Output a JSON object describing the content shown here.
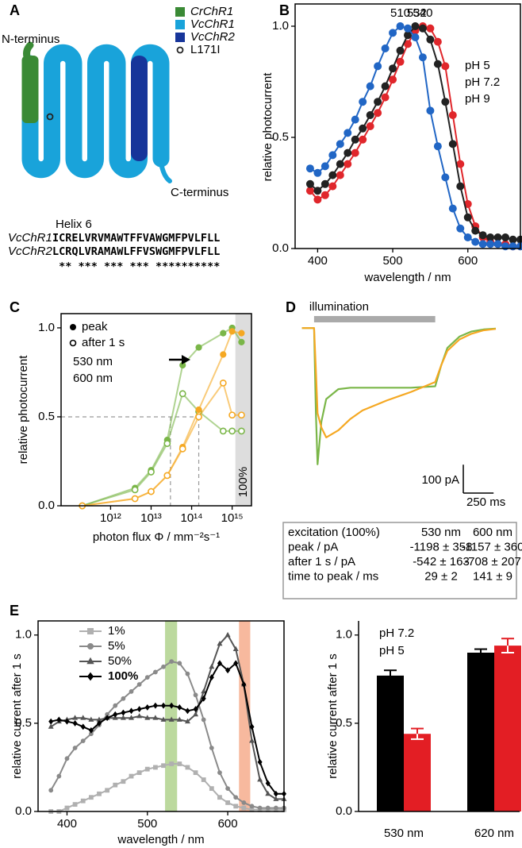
{
  "panel_labels": [
    "A",
    "B",
    "C",
    "D",
    "E"
  ],
  "diagram": {
    "legend": [
      {
        "label": "CrChR1",
        "color": "#3a8a35",
        "shape": "square"
      },
      {
        "label": "VcChR1",
        "color": "#19a3da",
        "shape": "square"
      },
      {
        "label": "VcChR2",
        "color": "#17359a",
        "shape": "square"
      },
      {
        "label": "L171I",
        "color": "#222222",
        "shape": "circle"
      }
    ],
    "n_terminus": "N-terminus",
    "c_terminus": "C-terminus",
    "helix_title": "Helix 6",
    "sequences": [
      {
        "name": "VcChR1",
        "sequence": "ICRELVRVMAWTFFVAWGMFPVLFLL",
        "color": "#19a3da"
      },
      {
        "name": "VcChR2",
        "sequence": "LCRQLVRAMAWLFFVSWGMFPVLFLL",
        "color": "#17359a"
      }
    ],
    "conservation": " ** *** *** *** **********"
  },
  "table": {
    "header": [
      "excitation (100%)",
      "530 nm",
      "600 nm"
    ],
    "rows": [
      [
        "peak / pA",
        "-1198 ± 358",
        "-1157 ± 360"
      ],
      [
        "after 1 s / pA",
        "-542 ± 163",
        "-708 ± 207"
      ],
      [
        "time to peak / ms",
        "29 ± 2",
        "141 ± 9"
      ]
    ],
    "column_colors": [
      "#000000",
      "#7ab648",
      "#f5a822"
    ]
  },
  "chart_data": [
    {
      "type": "line",
      "xlabel": "wavelength / nm",
      "ylabel": "relative photocurrent",
      "x": [
        390,
        400,
        410,
        420,
        430,
        440,
        450,
        460,
        470,
        480,
        490,
        500,
        510,
        520,
        530,
        540,
        550,
        560,
        570,
        580,
        590,
        600,
        610,
        620,
        630,
        640,
        650,
        660,
        670
      ],
      "series": [
        {
          "name": "pH 5",
          "color": "#e0262b",
          "marker": "circle",
          "values": [
            0.26,
            0.22,
            0.24,
            0.28,
            0.33,
            0.38,
            0.43,
            0.49,
            0.55,
            0.61,
            0.68,
            0.76,
            0.84,
            0.92,
            0.98,
            1.0,
            0.99,
            0.93,
            0.82,
            0.6,
            0.38,
            0.2,
            0.1,
            0.05,
            0.03,
            0.02,
            0.02,
            0.01,
            0.01
          ]
        },
        {
          "name": "pH 7.2",
          "color": "#222222",
          "marker": "circle",
          "values": [
            0.29,
            0.26,
            0.29,
            0.33,
            0.38,
            0.43,
            0.49,
            0.54,
            0.6,
            0.66,
            0.73,
            0.81,
            0.89,
            0.96,
            1.0,
            0.99,
            0.94,
            0.83,
            0.66,
            0.47,
            0.28,
            0.14,
            0.08,
            0.06,
            0.05,
            0.05,
            0.05,
            0.04,
            0.04
          ]
        },
        {
          "name": "pH 9",
          "color": "#2166c5",
          "marker": "circle",
          "values": [
            0.36,
            0.34,
            0.37,
            0.42,
            0.47,
            0.52,
            0.58,
            0.66,
            0.73,
            0.82,
            0.9,
            0.97,
            1.0,
            0.99,
            0.95,
            0.86,
            0.62,
            0.46,
            0.32,
            0.18,
            0.09,
            0.05,
            0.03,
            0.02,
            0.02,
            0.02,
            0.01,
            0.01,
            0.01
          ]
        }
      ],
      "peak_labels": [
        {
          "value": 510,
          "color": "#2166c5"
        },
        {
          "value": 532,
          "color": "#222222"
        },
        {
          "value": 540,
          "color": "#e0262b"
        }
      ],
      "legend": "top-right",
      "xlim": [
        370,
        670
      ],
      "xticks": [
        400,
        500,
        600
      ],
      "ylim": [
        0,
        1.1
      ],
      "yticks": [
        {
          "value": 0,
          "label": "0.0"
        },
        {
          "value": 0.5,
          "label": "0.5"
        },
        {
          "value": 1,
          "label": "1.0"
        }
      ]
    },
    {
      "type": "line",
      "xlabel": "photon flux Φ / mm⁻²s⁻¹",
      "ylabel": "relative photocurrent",
      "xscale": "log",
      "x": [
        200000000000.0,
        4000000000000.0,
        10000000000000.0,
        25000000000000.0,
        60000000000000.0,
        150000000000000.0,
        600000000000000.0,
        1000000000000000.0,
        1700000000000000.0
      ],
      "series": [
        {
          "color": "#7ab648",
          "marker": "filled",
          "values": [
            0,
            0.1,
            0.2,
            0.37,
            0.79,
            0.89,
            0.97,
            1.0,
            0.92
          ]
        },
        {
          "color": "#7ab648",
          "marker": "open",
          "values": [
            0,
            0.09,
            0.19,
            0.35,
            0.63,
            0.53,
            0.42,
            0.42,
            0.42
          ]
        },
        {
          "color": "#f5a822",
          "marker": "filled",
          "values": [
            0,
            0.04,
            0.08,
            0.17,
            0.33,
            0.54,
            0.85,
            0.98,
            0.97
          ]
        },
        {
          "color": "#f5a822",
          "marker": "open",
          "values": [
            0,
            0.04,
            0.08,
            0.17,
            0.32,
            0.5,
            0.69,
            0.51,
            0.51
          ]
        }
      ],
      "legend": {
        "markers": [
          {
            "label": "peak",
            "marker": "filled"
          },
          {
            "label": "after 1 s",
            "marker": "open"
          }
        ],
        "colors": [
          {
            "label": "530 nm",
            "color": "#7ab648"
          },
          {
            "label": "600 nm",
            "color": "#f5a822"
          }
        ]
      },
      "highlight_bands": [
        {
          "range": [
            1200000000000000.0,
            3000000000000000.0
          ],
          "color": "#dddddd",
          "label": "100%"
        }
      ],
      "reference_lines": {
        "y": 0.5,
        "x": [
          30000000000000.0,
          150000000000000.0
        ]
      },
      "xlim": [
        60000000000.0,
        3000000000000000.0
      ],
      "xticks": [
        {
          "value": 1000000000000.0,
          "label": "10¹²"
        },
        {
          "value": 10000000000000.0,
          "label": "10¹³"
        },
        {
          "value": 100000000000000.0,
          "label": "10¹⁴"
        },
        {
          "value": 1000000000000000.0,
          "label": "10¹⁵"
        }
      ],
      "ylim": [
        0,
        1.08
      ],
      "yticks": [
        {
          "value": 0,
          "label": "0.0"
        },
        {
          "value": 0.5,
          "label": "0.5"
        },
        {
          "value": 1,
          "label": "1.0"
        }
      ]
    },
    {
      "type": "line",
      "x": [
        -100,
        0,
        15,
        29,
        60,
        100,
        200,
        300,
        400,
        600,
        800,
        1000,
        1050,
        1100,
        1200,
        1300,
        1400,
        1500
      ],
      "series": [
        {
          "color": "#7ab648",
          "values": [
            0,
            0,
            -300,
            -480,
            -330,
            -250,
            -215,
            -210,
            -210,
            -210,
            -210,
            -205,
            -130,
            -70,
            -30,
            -12,
            -5,
            -2
          ]
        },
        {
          "color": "#f5a822",
          "values": [
            0,
            0,
            -150,
            -300,
            -350,
            -385,
            -360,
            -320,
            -290,
            -255,
            -225,
            -190,
            -130,
            -80,
            -40,
            -20,
            -8,
            -3
          ]
        }
      ],
      "illumination": {
        "label": "illumination",
        "range": [
          0,
          1000
        ],
        "color": "#aaaaaa"
      },
      "scalebar": {
        "y": 100,
        "y_label": "100 pA",
        "x": 250,
        "x_label": "250 ms"
      },
      "xlim": [
        -150,
        1500
      ],
      "ylim": [
        -500,
        20
      ]
    },
    {
      "type": "line",
      "xlabel": "wavelength / nm",
      "ylabel": "relative current after 1 s",
      "x": [
        380,
        390,
        400,
        410,
        420,
        430,
        440,
        450,
        460,
        470,
        480,
        490,
        500,
        510,
        520,
        530,
        540,
        550,
        560,
        570,
        580,
        590,
        600,
        610,
        620,
        630,
        640,
        650,
        660,
        670
      ],
      "series": [
        {
          "name": "1%",
          "color": "#b0b0b0",
          "marker": "square",
          "values": [
            0.0,
            0.0,
            0.02,
            0.04,
            0.06,
            0.08,
            0.1,
            0.12,
            0.15,
            0.17,
            0.2,
            0.22,
            0.24,
            0.25,
            0.26,
            0.27,
            0.27,
            0.25,
            0.22,
            0.18,
            0.13,
            0.08,
            0.05,
            0.03,
            0.02,
            0.01,
            0.01,
            0.01,
            0.01,
            0.01
          ]
        },
        {
          "name": "5%",
          "color": "#8a8a8a",
          "marker": "circle",
          "values": [
            0.12,
            0.2,
            0.3,
            0.36,
            0.4,
            0.44,
            0.49,
            0.55,
            0.6,
            0.64,
            0.68,
            0.72,
            0.76,
            0.79,
            0.82,
            0.85,
            0.84,
            0.78,
            0.66,
            0.52,
            0.36,
            0.22,
            0.13,
            0.08,
            0.05,
            0.03,
            0.02,
            0.02,
            0.02,
            0.02
          ]
        },
        {
          "name": "50%",
          "color": "#555555",
          "marker": "triangle",
          "values": [
            0.48,
            0.51,
            0.52,
            0.53,
            0.53,
            0.52,
            0.52,
            0.53,
            0.53,
            0.53,
            0.53,
            0.54,
            0.53,
            0.53,
            0.52,
            0.52,
            0.52,
            0.51,
            0.55,
            0.68,
            0.82,
            0.95,
            1.0,
            0.92,
            0.72,
            0.4,
            0.18,
            0.1,
            0.07,
            0.07
          ]
        },
        {
          "name": "100%",
          "color": "#000000",
          "marker": "diamond",
          "values": [
            0.51,
            0.52,
            0.51,
            0.5,
            0.48,
            0.46,
            0.5,
            0.53,
            0.55,
            0.56,
            0.57,
            0.58,
            0.59,
            0.6,
            0.6,
            0.6,
            0.59,
            0.57,
            0.58,
            0.64,
            0.76,
            0.84,
            0.8,
            0.84,
            0.72,
            0.48,
            0.28,
            0.16,
            0.1,
            0.1
          ]
        }
      ],
      "highlight_bands": [
        {
          "range": [
            522,
            537
          ],
          "color": "#bcd99e"
        },
        {
          "range": [
            614,
            628
          ],
          "color": "#f7b99e"
        }
      ],
      "legend": "top-left",
      "xlim": [
        364,
        670
      ],
      "xticks": [
        400,
        500,
        600
      ],
      "ylim": [
        0,
        1.08
      ],
      "yticks": [
        {
          "value": 0,
          "label": "0.0"
        },
        {
          "value": 0.5,
          "label": "0.5"
        },
        {
          "value": 1,
          "label": "1.0"
        }
      ]
    },
    {
      "type": "bar",
      "ylabel": "relative current after 1 s",
      "categories": [
        "530 nm",
        "620 nm"
      ],
      "category_colors": [
        "#7ab648",
        "#f07a22"
      ],
      "series": [
        {
          "name": "pH 7.2",
          "color": "#000000",
          "values": [
            0.77,
            0.9
          ],
          "errors": [
            0.03,
            0.02
          ]
        },
        {
          "name": "pH 5",
          "color": "#e31e24",
          "values": [
            0.44,
            0.94
          ],
          "errors": [
            0.03,
            0.04
          ]
        }
      ],
      "legend": "top-left",
      "ylim": [
        0,
        1.08
      ],
      "yticks": [
        {
          "value": 0,
          "label": "0.0"
        },
        {
          "value": 0.5,
          "label": "0.5"
        },
        {
          "value": 1,
          "label": "1.0"
        }
      ]
    }
  ]
}
